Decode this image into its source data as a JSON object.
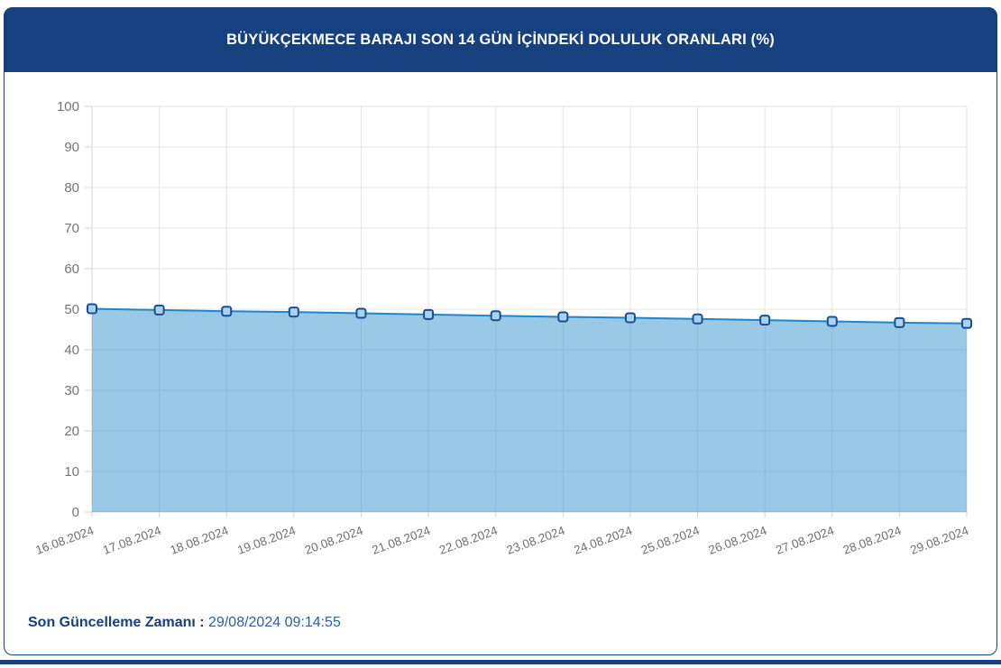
{
  "header": {
    "title": "BÜYÜKÇEKMECE BARAJI SON 14 GÜN İÇİNDEKİ DOLULUK ORANLARI (%)",
    "bg_color": "#16407E",
    "text_color": "#FFFFFF"
  },
  "chart_data": {
    "type": "area",
    "title": "BÜYÜKÇEKMECE BARAJI SON 14 GÜN İÇİNDEKİ DOLULUK ORANLARI (%)",
    "categories": [
      "16.08.2024",
      "17.08.2024",
      "18.08.2024",
      "19.08.2024",
      "20.08.2024",
      "21.08.2024",
      "22.08.2024",
      "23.08.2024",
      "24.08.2024",
      "25.08.2024",
      "26.08.2024",
      "27.08.2024",
      "28.08.2024",
      "29.08.2024"
    ],
    "values": [
      50.1,
      49.8,
      49.5,
      49.3,
      49.0,
      48.7,
      48.4,
      48.1,
      47.9,
      47.6,
      47.3,
      47.0,
      46.7,
      46.5
    ],
    "xlabel": "",
    "ylabel": "",
    "ylim": [
      0,
      100
    ],
    "ytick_step": 10,
    "grid": true,
    "legend": "none",
    "x_label_rotation_deg": -20,
    "colors": {
      "line": "#1D86CC",
      "fill": "rgba(32,135,200,0.45)",
      "marker_fill": "#A6D4F0",
      "marker_border": "#1B4D92",
      "grid": "#E6E6E6",
      "axis": "#D4D4D4",
      "tick_label": "#757575"
    }
  },
  "footer": {
    "label": "Son Güncelleme Zamanı",
    "separator": " : ",
    "value": "29/08/2024 09:14:55"
  }
}
